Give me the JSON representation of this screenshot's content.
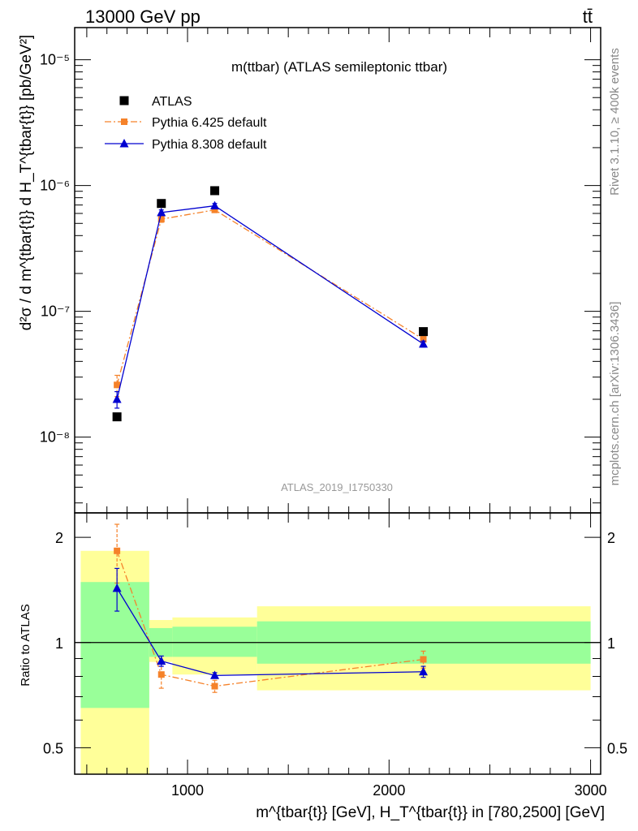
{
  "header": {
    "energy_label": "13000 GeV pp",
    "process_label": "tt̄"
  },
  "side_text": {
    "rivet": "Rivet 3.1.10, ≥ 400k events",
    "source": "mcplots.cern.ch [arXiv:1306.3436]"
  },
  "colors": {
    "atlas": "#000000",
    "pythia6": "#f5822a",
    "pythia8": "#0000d0",
    "band_inner": "#99ff99",
    "band_outer": "#ffff99"
  },
  "chart_data": [
    {
      "type": "scatter",
      "panel": "main",
      "title": "m(ttbar) (ATLAS semileptonic ttbar)",
      "watermark": "ATLAS_2019_I1750330",
      "ylabel": "d²σ / d m^{tbar{t}} d H_T^{tbar{t}} [pb/GeV²]",
      "yscale": "log",
      "ylim": [
        2.5e-09,
        1.8e-05
      ],
      "xlim": [
        440,
        3050
      ],
      "ytick_labels": [
        "10⁻⁸",
        "10⁻⁷",
        "10⁻⁶",
        "10⁻⁵"
      ],
      "ytick_values": [
        1e-08,
        1e-07,
        1e-06,
        1e-05
      ],
      "legend_position": "top-left",
      "series": [
        {
          "name": "ATLAS",
          "marker": "square",
          "x": [
            650,
            870,
            1135,
            2170
          ],
          "y": [
            1.45e-08,
            7.2e-07,
            9.1e-07,
            6.9e-08
          ]
        },
        {
          "name": "Pythia 6.425 default",
          "marker": "square-small",
          "line": "dash-dot",
          "x": [
            650,
            870,
            1135,
            2170
          ],
          "y": [
            2.6e-08,
            5.4e-07,
            6.4e-07,
            6e-08
          ],
          "yerr": [
            5e-09,
            3e-08,
            3e-08,
            3e-09
          ]
        },
        {
          "name": "Pythia 8.308 default",
          "marker": "triangle",
          "line": "solid",
          "x": [
            650,
            870,
            1135,
            2170
          ],
          "y": [
            2e-08,
            6.1e-07,
            6.9e-07,
            5.5e-08
          ],
          "yerr": [
            3e-09,
            3e-08,
            3e-08,
            3e-09
          ]
        }
      ]
    },
    {
      "type": "scatter",
      "panel": "ratio",
      "ylabel": "Ratio to ATLAS",
      "xlabel": "m^{tbar{t}} [GeV], H_T^{tbar{t}} in [780,2500] [GeV]",
      "yscale": "log",
      "ylim": [
        0.42,
        2.35
      ],
      "xlim": [
        440,
        3050
      ],
      "xtick_labels": [
        "1000",
        "2000",
        "3000"
      ],
      "xtick_values": [
        1000,
        2000,
        3000
      ],
      "ytick_labels": [
        "0.5",
        "1",
        "2"
      ],
      "ytick_values": [
        0.5,
        1,
        2
      ],
      "bands": [
        {
          "x0": 470,
          "x1": 810,
          "inner": [
            0.65,
            1.49
          ],
          "outer": [
            0.38,
            1.83
          ]
        },
        {
          "x0": 810,
          "x1": 925,
          "inner": [
            0.91,
            1.1
          ],
          "outer": [
            0.88,
            1.16
          ]
        },
        {
          "x0": 925,
          "x1": 1345,
          "inner": [
            0.91,
            1.11
          ],
          "outer": [
            0.81,
            1.18
          ]
        },
        {
          "x0": 1345,
          "x1": 3000,
          "inner": [
            0.87,
            1.15
          ],
          "outer": [
            0.73,
            1.27
          ]
        }
      ],
      "series": [
        {
          "name": "Pythia 6.425 default",
          "x": [
            650,
            870,
            1135,
            2170
          ],
          "y": [
            1.83,
            0.81,
            0.75,
            0.895
          ],
          "yerr": [
            0.35,
            0.07,
            0.03,
            0.05
          ]
        },
        {
          "name": "Pythia 8.308 default",
          "x": [
            650,
            870,
            1135,
            2170
          ],
          "y": [
            1.43,
            0.885,
            0.805,
            0.825
          ],
          "yerr": [
            0.2,
            0.03,
            0.015,
            0.03
          ]
        }
      ]
    }
  ]
}
